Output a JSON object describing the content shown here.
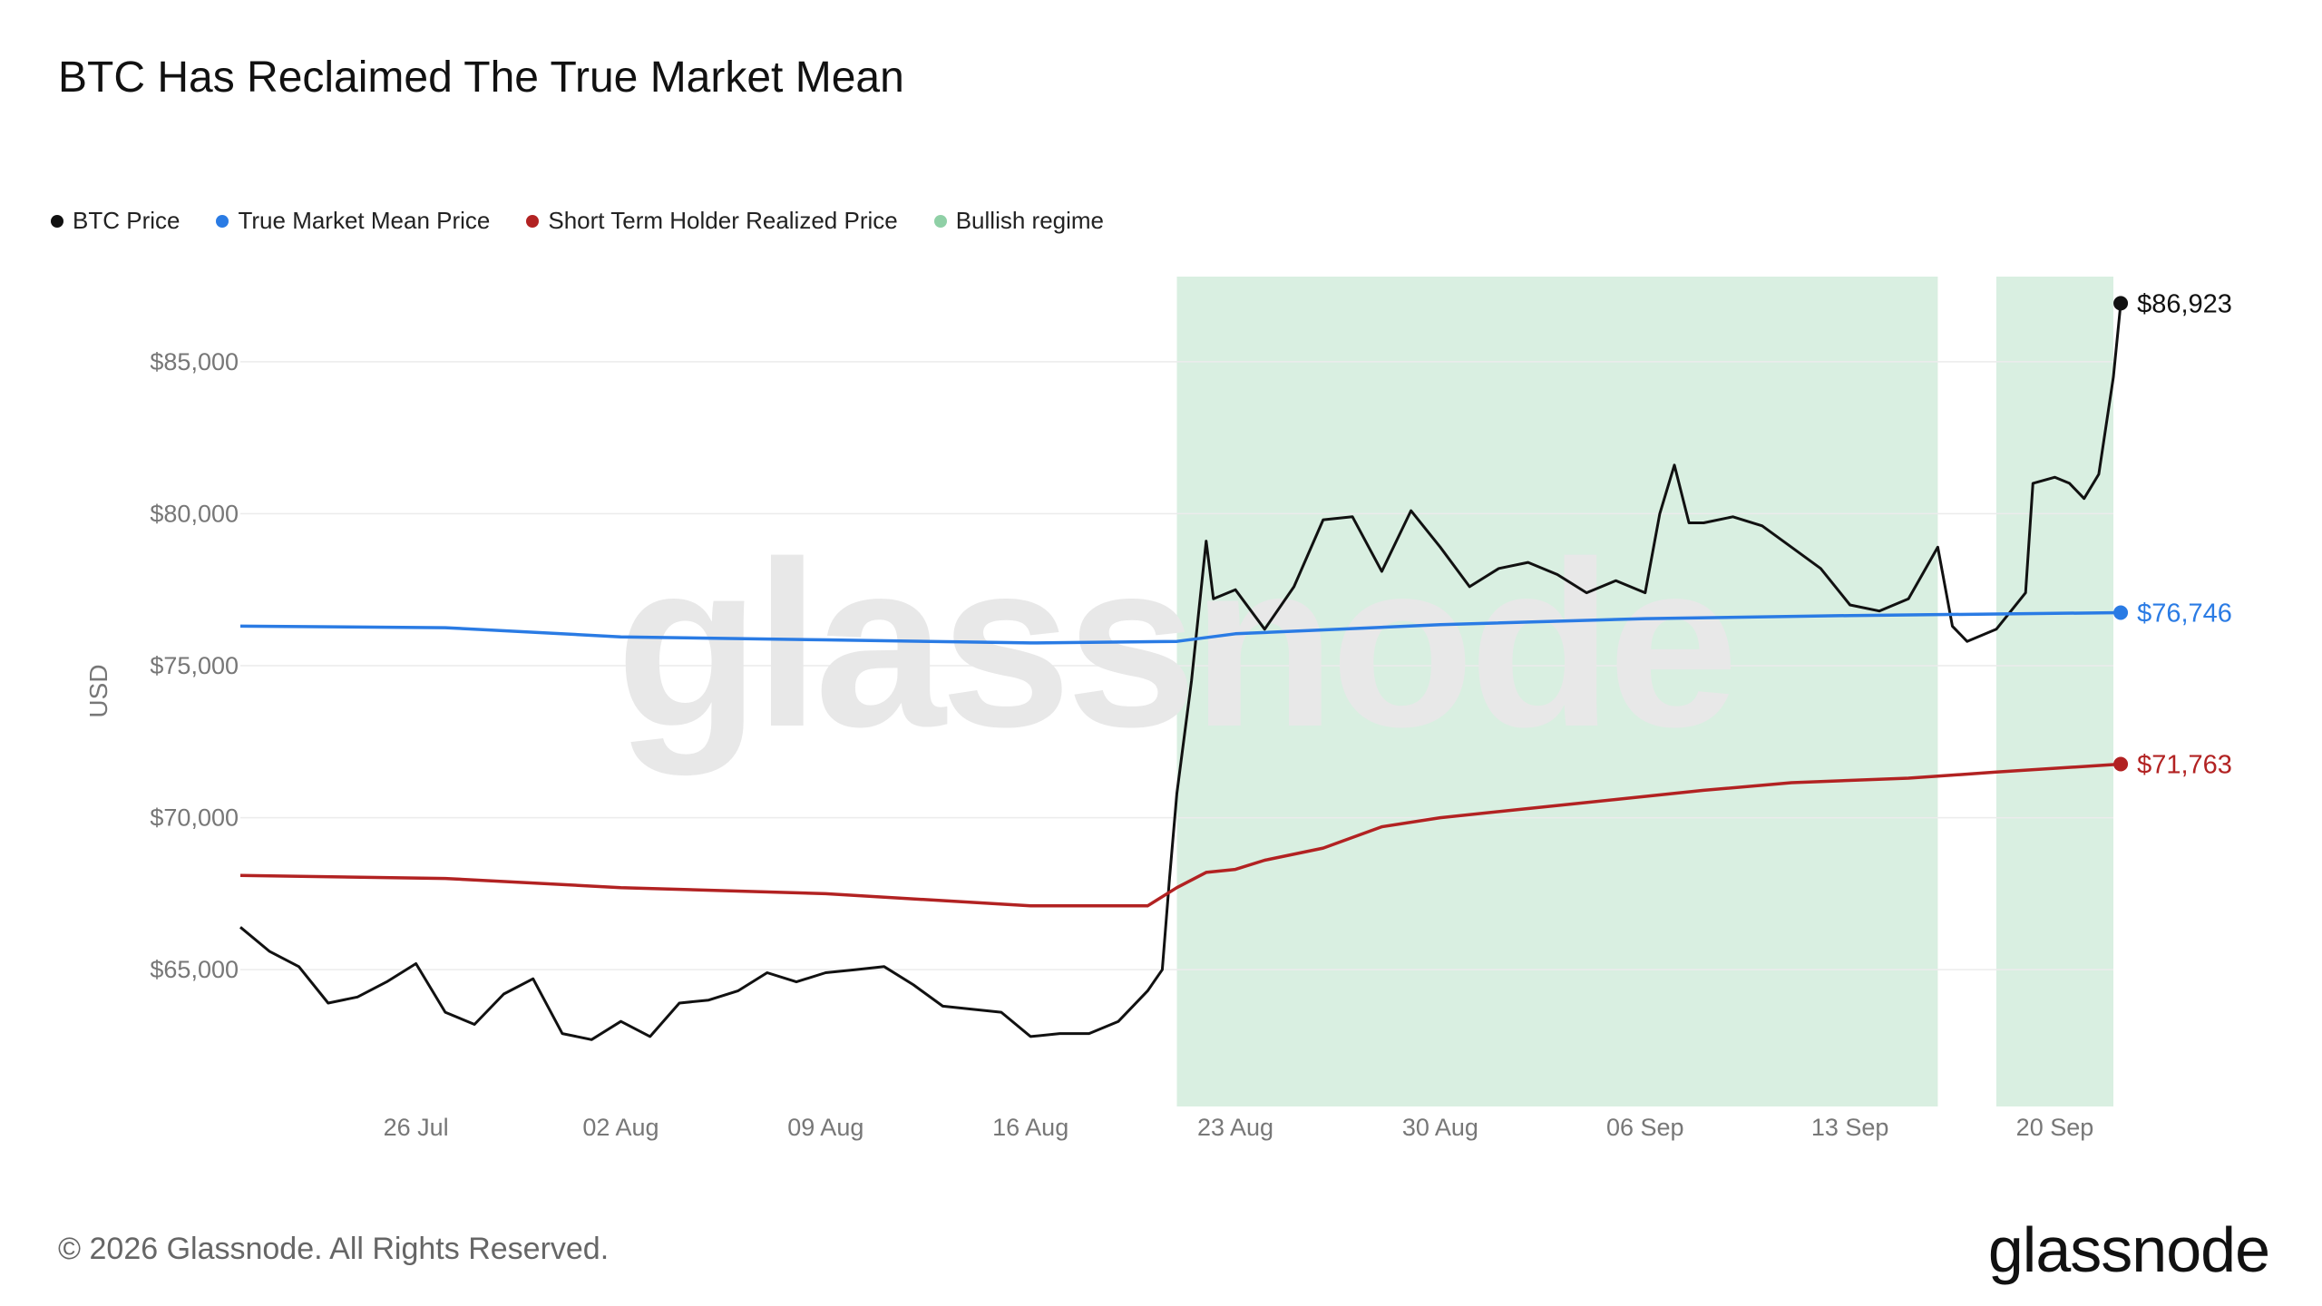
{
  "title": "BTC Has Reclaimed The True Market Mean",
  "footer": {
    "copyright": "© 2026 Glassnode. All Rights Reserved.",
    "brand": "glassnode",
    "watermark": "glassnode"
  },
  "legend": [
    {
      "label": "BTC Price",
      "color": "#111111"
    },
    {
      "label": "True Market Mean Price",
      "color": "#2a7be4"
    },
    {
      "label": "Short Term Holder Realized Price",
      "color": "#b22222"
    },
    {
      "label": "Bullish regime",
      "color": "#8fd0a6"
    }
  ],
  "chart_data": {
    "type": "line",
    "ylabel": "USD",
    "ylim": [
      60500,
      87800
    ],
    "xlim": [
      "2024-07-20",
      "2024-09-22"
    ],
    "x_ticks": [
      "26 Jul",
      "02 Aug",
      "09 Aug",
      "16 Aug",
      "23 Aug",
      "30 Aug",
      "06 Sep",
      "13 Sep",
      "20 Sep"
    ],
    "x_tick_dates": [
      "2024-07-26",
      "2024-08-02",
      "2024-08-09",
      "2024-08-16",
      "2024-08-23",
      "2024-08-30",
      "2024-09-06",
      "2024-09-13",
      "2024-09-20"
    ],
    "y_ticks": [
      65000,
      70000,
      75000,
      80000,
      85000
    ],
    "y_tick_labels": [
      "$65,000",
      "$70,000",
      "$75,000",
      "$80,000",
      "$85,000"
    ],
    "grid": true,
    "legend_position": "top-left",
    "bullish_regimes": [
      {
        "start": "2024-08-21",
        "end": "2024-09-16"
      },
      {
        "start": "2024-09-18",
        "end": "2024-09-22"
      }
    ],
    "series": [
      {
        "name": "BTC Price",
        "color": "#111111",
        "last_label": "$86,923",
        "points": [
          [
            "2024-07-20",
            66400
          ],
          [
            "2024-07-21",
            65600
          ],
          [
            "2024-07-22",
            65100
          ],
          [
            "2024-07-23",
            63900
          ],
          [
            "2024-07-24",
            64100
          ],
          [
            "2024-07-25",
            64600
          ],
          [
            "2024-07-26",
            65200
          ],
          [
            "2024-07-27",
            63600
          ],
          [
            "2024-07-28",
            63200
          ],
          [
            "2024-07-29",
            64200
          ],
          [
            "2024-07-30",
            64700
          ],
          [
            "2024-07-31",
            62900
          ],
          [
            "2024-08-01",
            62700
          ],
          [
            "2024-08-02",
            63300
          ],
          [
            "2024-08-03",
            62800
          ],
          [
            "2024-08-04",
            63900
          ],
          [
            "2024-08-05",
            64000
          ],
          [
            "2024-08-06",
            64300
          ],
          [
            "2024-08-07",
            64900
          ],
          [
            "2024-08-08",
            64600
          ],
          [
            "2024-08-09",
            64900
          ],
          [
            "2024-08-10",
            65000
          ],
          [
            "2024-08-11",
            65100
          ],
          [
            "2024-08-12",
            64500
          ],
          [
            "2024-08-13",
            63800
          ],
          [
            "2024-08-14",
            63700
          ],
          [
            "2024-08-15",
            63600
          ],
          [
            "2024-08-16",
            62800
          ],
          [
            "2024-08-17",
            62900
          ],
          [
            "2024-08-18",
            62900
          ],
          [
            "2024-08-19",
            63300
          ],
          [
            "2024-08-20",
            64300
          ],
          [
            "2024-08-20T12:00",
            65000
          ],
          [
            "2024-08-20T18:00",
            68000
          ],
          [
            "2024-08-21",
            70800
          ],
          [
            "2024-08-21T12:00",
            74500
          ],
          [
            "2024-08-22",
            79100
          ],
          [
            "2024-08-22T06:00",
            77200
          ],
          [
            "2024-08-23",
            77500
          ],
          [
            "2024-08-24",
            76200
          ],
          [
            "2024-08-25",
            77600
          ],
          [
            "2024-08-26",
            79800
          ],
          [
            "2024-08-27",
            79900
          ],
          [
            "2024-08-28",
            78100
          ],
          [
            "2024-08-29",
            80100
          ],
          [
            "2024-08-30",
            78900
          ],
          [
            "2024-08-31",
            77600
          ],
          [
            "2024-09-01",
            78200
          ],
          [
            "2024-09-02",
            78400
          ],
          [
            "2024-09-03",
            78000
          ],
          [
            "2024-09-04",
            77400
          ],
          [
            "2024-09-05",
            77800
          ],
          [
            "2024-09-06",
            77400
          ],
          [
            "2024-09-06T12:00",
            80000
          ],
          [
            "2024-09-07",
            81600
          ],
          [
            "2024-09-07T12:00",
            79700
          ],
          [
            "2024-09-08",
            79700
          ],
          [
            "2024-09-09",
            79900
          ],
          [
            "2024-09-10",
            79600
          ],
          [
            "2024-09-11",
            78900
          ],
          [
            "2024-09-12",
            78200
          ],
          [
            "2024-09-13",
            77000
          ],
          [
            "2024-09-14",
            76800
          ],
          [
            "2024-09-15",
            77200
          ],
          [
            "2024-09-16",
            78900
          ],
          [
            "2024-09-16T12:00",
            76300
          ],
          [
            "2024-09-17",
            75800
          ],
          [
            "2024-09-18",
            76200
          ],
          [
            "2024-09-18T12:00",
            76800
          ],
          [
            "2024-09-19",
            77400
          ],
          [
            "2024-09-19T06:00",
            81000
          ],
          [
            "2024-09-20",
            81200
          ],
          [
            "2024-09-20T12:00",
            81000
          ],
          [
            "2024-09-21",
            80500
          ],
          [
            "2024-09-21T12:00",
            81300
          ],
          [
            "2024-09-22",
            84500
          ],
          [
            "2024-09-22T06:00",
            86923
          ]
        ]
      },
      {
        "name": "True Market Mean Price",
        "color": "#2a7be4",
        "last_label": "$76,746",
        "points": [
          [
            "2024-07-20",
            76300
          ],
          [
            "2024-07-27",
            76250
          ],
          [
            "2024-08-02",
            75950
          ],
          [
            "2024-08-09",
            75850
          ],
          [
            "2024-08-16",
            75750
          ],
          [
            "2024-08-21",
            75800
          ],
          [
            "2024-08-23",
            76050
          ],
          [
            "2024-08-30",
            76350
          ],
          [
            "2024-09-06",
            76550
          ],
          [
            "2024-09-13",
            76650
          ],
          [
            "2024-09-18",
            76700
          ],
          [
            "2024-09-22T06:00",
            76746
          ]
        ]
      },
      {
        "name": "Short Term Holder Realized Price",
        "color": "#b22222",
        "last_label": "$71,763",
        "points": [
          [
            "2024-07-20",
            68100
          ],
          [
            "2024-07-27",
            68000
          ],
          [
            "2024-08-02",
            67700
          ],
          [
            "2024-08-09",
            67500
          ],
          [
            "2024-08-16",
            67100
          ],
          [
            "2024-08-20",
            67100
          ],
          [
            "2024-08-21",
            67700
          ],
          [
            "2024-08-22",
            68200
          ],
          [
            "2024-08-23",
            68300
          ],
          [
            "2024-08-24",
            68600
          ],
          [
            "2024-08-26",
            69000
          ],
          [
            "2024-08-28",
            69700
          ],
          [
            "2024-08-30",
            70000
          ],
          [
            "2024-09-02",
            70300
          ],
          [
            "2024-09-05",
            70600
          ],
          [
            "2024-09-08",
            70900
          ],
          [
            "2024-09-11",
            71150
          ],
          [
            "2024-09-15",
            71300
          ],
          [
            "2024-09-18",
            71500
          ],
          [
            "2024-09-22T06:00",
            71763
          ]
        ]
      }
    ]
  }
}
